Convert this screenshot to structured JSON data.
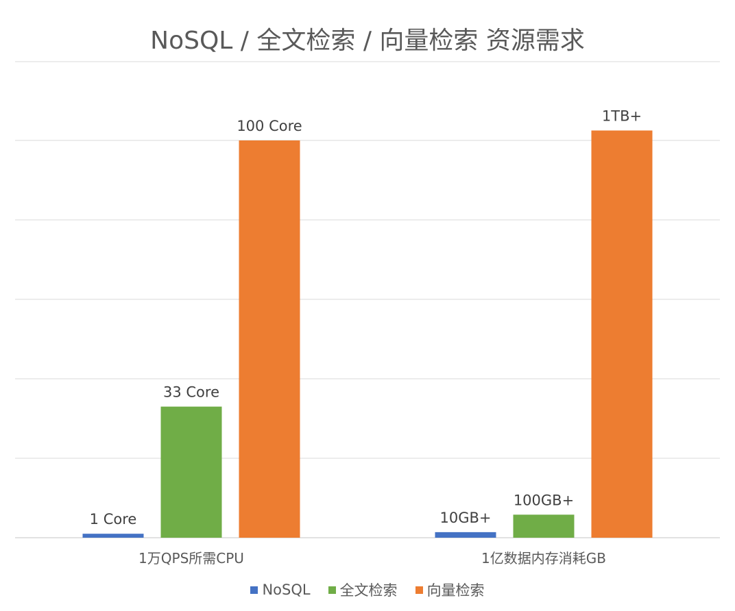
{
  "chart_data": {
    "type": "bar",
    "title": "NoSQL / 全文检索 / 向量检索 资源需求",
    "categories": [
      "1万QPS所需CPU",
      "1亿数据内存消耗GB"
    ],
    "series": [
      {
        "name": "NoSQL",
        "color": "#4472C4",
        "values": [
          1,
          1.4
        ],
        "labels": [
          "1 Core",
          "10GB+"
        ]
      },
      {
        "name": "全文检索",
        "color": "#70AD47",
        "values": [
          33,
          5.8
        ],
        "labels": [
          "33 Core",
          "100GB+"
        ]
      },
      {
        "name": "向量检索",
        "color": "#ED7D31",
        "values": [
          100,
          102.5
        ],
        "labels": [
          "100 Core",
          "1TB+"
        ]
      }
    ],
    "ylim": [
      0,
      120
    ],
    "grid": true,
    "legend_position": "bottom",
    "xlabel": "",
    "ylabel": ""
  }
}
